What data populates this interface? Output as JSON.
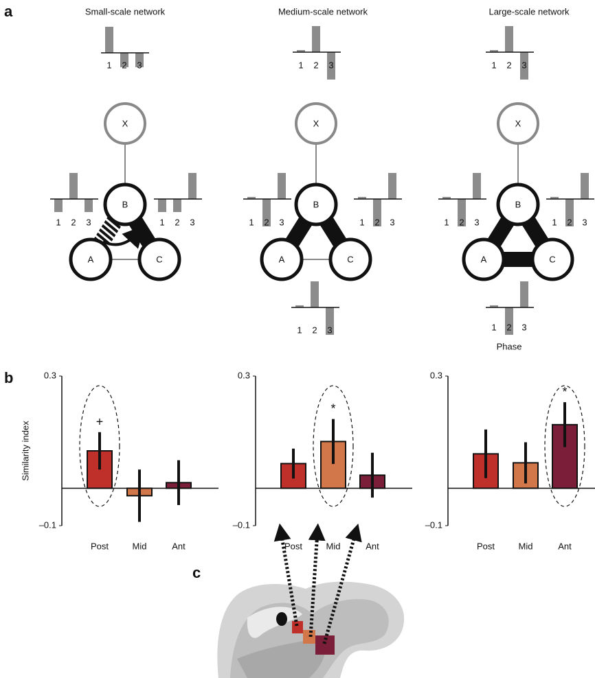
{
  "panels": [
    "a",
    "b",
    "c"
  ],
  "networks": [
    {
      "title": "Small-scale network",
      "nodes": [
        "X",
        "B",
        "A",
        "C"
      ]
    },
    {
      "title": "Medium-scale network",
      "nodes": [
        "X",
        "B",
        "A",
        "C"
      ]
    },
    {
      "title": "Large-scale network",
      "nodes": [
        "X",
        "B",
        "A",
        "C"
      ]
    }
  ],
  "phase_label": "Phase",
  "chart_data": [
    {
      "type": "bar",
      "ylabel": "Similarity index",
      "categories": [
        "Post",
        "Mid",
        "Ant"
      ],
      "values": [
        0.1,
        -0.02,
        0.015
      ],
      "errors": [
        0.05,
        0.07,
        0.06
      ],
      "colors": [
        "#c0302a",
        "#d2774a",
        "#7a1e3a"
      ],
      "ylim": [
        -0.1,
        0.3
      ],
      "yticks": [
        {
          "value": -0.1,
          "label": "–0.1"
        },
        0.3
      ],
      "highlight": 0,
      "annotation": "+"
    },
    {
      "type": "bar",
      "categories": [
        "Post",
        "Mid",
        "Ant"
      ],
      "values": [
        0.066,
        0.125,
        0.035
      ],
      "errors": [
        0.04,
        0.06,
        0.06
      ],
      "colors": [
        "#c0302a",
        "#d2774a",
        "#7a1e3a"
      ],
      "ylim": [
        -0.1,
        0.3
      ],
      "yticks": [
        {
          "value": -0.1,
          "label": "–0.1"
        },
        0.3
      ],
      "highlight": 1,
      "annotation": "*"
    },
    {
      "type": "bar",
      "categories": [
        "Post",
        "Mid",
        "Ant"
      ],
      "values": [
        0.092,
        0.068,
        0.17
      ],
      "errors": [
        0.065,
        0.055,
        0.06
      ],
      "colors": [
        "#c0302a",
        "#d2774a",
        "#7a1e3a"
      ],
      "ylim": [
        -0.1,
        0.3
      ],
      "yticks": [
        {
          "value": -0.1,
          "label": "–0.1"
        },
        0.3
      ],
      "highlight": 2,
      "annotation": "*"
    },
    {
      "type": "mini",
      "categories": [
        "1",
        "2",
        "3"
      ],
      "values": [
        1,
        -0.55,
        -0.55
      ],
      "color": "#8c8c8c"
    },
    {
      "type": "mini",
      "categories": [
        "1",
        "2",
        "3"
      ],
      "values": [
        0.08,
        1,
        -1.05
      ],
      "color": "#8c8c8c"
    },
    {
      "type": "mini",
      "categories": [
        "1",
        "2",
        "3"
      ],
      "values": [
        0.08,
        1,
        -1.05
      ],
      "color": "#8c8c8c"
    },
    {
      "type": "mini",
      "categories": [
        "1",
        "2",
        "3"
      ],
      "values": [
        -0.5,
        1,
        -0.5
      ],
      "color": "#8c8c8c"
    },
    {
      "type": "mini",
      "categories": [
        "1",
        "2",
        "3"
      ],
      "values": [
        -0.5,
        -0.5,
        1
      ],
      "color": "#8c8c8c"
    },
    {
      "type": "mini",
      "categories": [
        "1",
        "2",
        "3"
      ],
      "values": [
        0.08,
        -1.05,
        1
      ],
      "color": "#8c8c8c"
    },
    {
      "type": "mini",
      "categories": [
        "1",
        "2",
        "3"
      ],
      "values": [
        0.08,
        -1.05,
        1
      ],
      "color": "#8c8c8c"
    },
    {
      "type": "mini",
      "categories": [
        "1",
        "2",
        "3"
      ],
      "values": [
        0.08,
        -1.05,
        1
      ],
      "color": "#8c8c8c"
    },
    {
      "type": "mini",
      "categories": [
        "1",
        "2",
        "3"
      ],
      "values": [
        0.08,
        -1.05,
        1
      ],
      "color": "#8c8c8c"
    },
    {
      "type": "mini",
      "categories": [
        "1",
        "2",
        "3"
      ],
      "values": [
        0.08,
        1,
        -1.05
      ],
      "color": "#8c8c8c"
    },
    {
      "type": "mini",
      "categories": [
        "1",
        "2",
        "3"
      ],
      "values": [
        0.08,
        -1.05,
        1
      ],
      "color": "#8c8c8c"
    }
  ]
}
